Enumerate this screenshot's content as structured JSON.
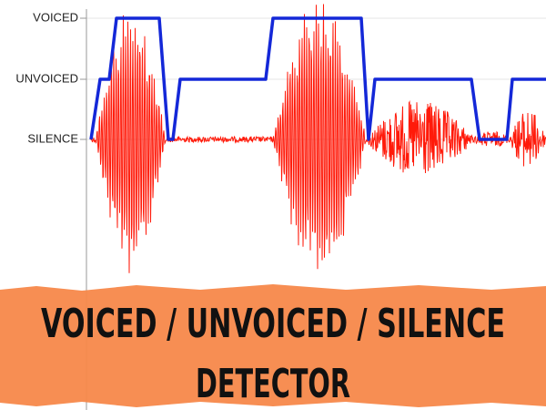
{
  "axis_labels": [
    "VOICED",
    "UNVOICED",
    "SILENCE"
  ],
  "banner": {
    "lines": [
      "VOICED / UNVOICED / SILENCE",
      "DETECTOR"
    ]
  }
}
